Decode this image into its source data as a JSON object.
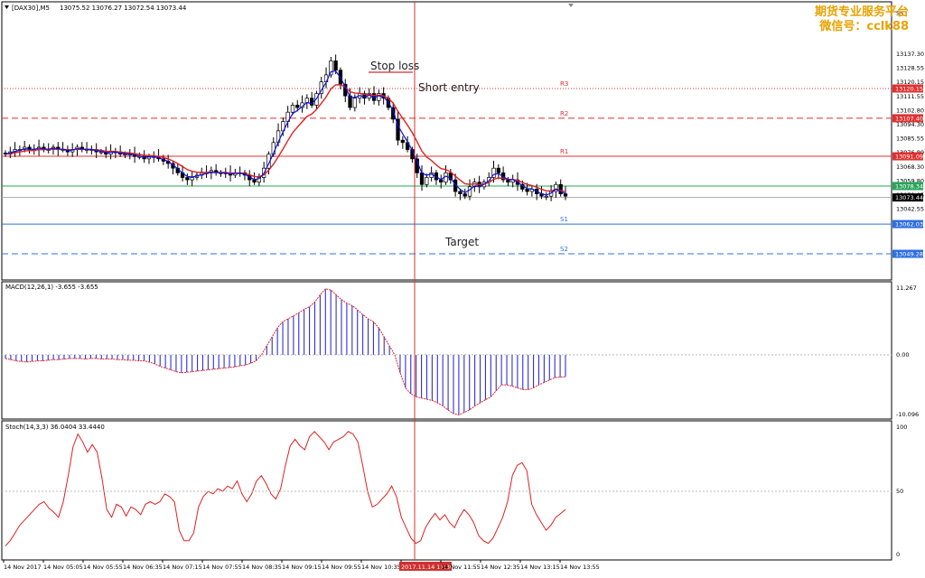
{
  "header": {
    "symbol": "[DAX30],M5",
    "ohlc": "13075.52 13076.27 13072.54 13073.44"
  },
  "watermark": {
    "line1": "期货专业服务平台",
    "line2": "微信号：cclk88"
  },
  "annotations": {
    "stop_loss": "Stop loss",
    "short_entry": "Short entry",
    "target": "Target"
  },
  "chart_data": [
    {
      "type": "candlestick",
      "title": "[DAX30],M5",
      "ylim": [
        13040,
        13155
      ],
      "y_ticks": [
        "13137.30",
        "13128.55",
        "13120.15",
        "13111.55",
        "13102.80",
        "13094.30",
        "13085.55",
        "13076.80",
        "13068.30",
        "13059.80",
        "13051.05",
        "13042.55"
      ],
      "top_tick": "55",
      "levels": [
        {
          "name": "R3",
          "value": 13120.15,
          "style": "dotted",
          "color": "#e03030"
        },
        {
          "name": "R2",
          "value": 13107.4,
          "style": "dashed",
          "color": "#e03030"
        },
        {
          "name": "R1",
          "value": 13091.09,
          "style": "solid",
          "color": "#e03030"
        },
        {
          "name": "",
          "value": 13078.34,
          "style": "solid",
          "color": "#2aa35a"
        },
        {
          "name": "S1",
          "value": 13062.03,
          "style": "solid",
          "color": "#2f6fe0"
        },
        {
          "name": "S2",
          "value": 13049.28,
          "style": "dashed",
          "color": "#2f6fe0"
        }
      ],
      "price_labels": [
        {
          "text": "13120.15",
          "color": "#e03030"
        },
        {
          "text": "13107.40",
          "color": "#e03030"
        },
        {
          "text": "13091.09",
          "color": "#e03030"
        },
        {
          "text": "13078.34",
          "color": "#2aa35a"
        },
        {
          "text": "13073.44",
          "color": "#000000"
        },
        {
          "text": "13062.03",
          "color": "#2f6fe0"
        },
        {
          "text": "13049.28",
          "color": "#2f6fe0"
        }
      ],
      "current_price": 13073.44,
      "closes": [
        13092,
        13093,
        13094,
        13094,
        13095,
        13094,
        13094,
        13095,
        13094,
        13094,
        13095,
        13094,
        13094,
        13093,
        13094,
        13095,
        13094,
        13094,
        13094,
        13093,
        13093,
        13092,
        13093,
        13093,
        13092,
        13092,
        13092,
        13091,
        13091,
        13090,
        13091,
        13091,
        13090,
        13089,
        13088,
        13086,
        13084,
        13082,
        13081,
        13082,
        13083,
        13084,
        13084,
        13085,
        13084,
        13084,
        13084,
        13083,
        13084,
        13084,
        13083,
        13081,
        13080,
        13082,
        13086,
        13092,
        13097,
        13102,
        13106,
        13110,
        13113,
        13112,
        13114,
        13116,
        13113,
        13118,
        13123,
        13126,
        13132,
        13128,
        13122,
        13117,
        13112,
        13116,
        13118,
        13116,
        13118,
        13115,
        13118,
        13116,
        13112,
        13107,
        13098,
        13097,
        13094,
        13090,
        13084,
        13079,
        13082,
        13084,
        13081,
        13080,
        13084,
        13081,
        13076,
        13075,
        13074,
        13078,
        13080,
        13078,
        13080,
        13082,
        13086,
        13084,
        13081,
        13080,
        13081,
        13079,
        13077,
        13076,
        13077,
        13075,
        13074,
        13074,
        13076,
        13079,
        13075,
        13074
      ],
      "ma_fast_color": "#1010e0",
      "ma_slow_color": "#e02020"
    },
    {
      "type": "bar",
      "title": "MACD(12,26,1) -3.655 -3.655",
      "ylim": [
        -10.096,
        11.267
      ],
      "y_ticks": [
        "11.267",
        "0.00",
        "-10.096"
      ],
      "values": [
        -0.6,
        -0.8,
        -1.0,
        -1.1,
        -1.2,
        -1.1,
        -1.0,
        -1.0,
        -0.9,
        -0.8,
        -0.8,
        -0.7,
        -0.6,
        -0.6,
        -0.6,
        -0.7,
        -0.6,
        -0.6,
        -0.7,
        -0.7,
        -0.7,
        -0.8,
        -0.8,
        -0.9,
        -0.9,
        -1.0,
        -1.0,
        -1.2,
        -1.5,
        -1.9,
        -2.2,
        -2.5,
        -2.8,
        -3.0,
        -2.9,
        -2.8,
        -2.7,
        -2.6,
        -2.5,
        -2.4,
        -2.3,
        -2.2,
        -2.1,
        -2.0,
        -1.8,
        -1.7,
        -1.4,
        -1.0,
        0.0,
        1.5,
        3.0,
        4.5,
        5.5,
        6.0,
        6.5,
        7.0,
        7.6,
        8.0,
        8.8,
        10.0,
        11.0,
        10.8,
        10.0,
        9.2,
        8.6,
        8.2,
        7.5,
        6.7,
        6.0,
        5.5,
        4.5,
        3.0,
        1.5,
        0.0,
        -3.0,
        -5.5,
        -6.5,
        -7.0,
        -7.2,
        -7.4,
        -7.6,
        -8.0,
        -8.5,
        -9.2,
        -9.8,
        -10.0,
        -9.6,
        -9.2,
        -8.5,
        -8.0,
        -7.5,
        -7.0,
        -6.0,
        -5.0,
        -5.0,
        -5.2,
        -5.5,
        -5.8,
        -5.8,
        -5.5,
        -5.0,
        -4.6,
        -4.2,
        -3.8,
        -3.7,
        -3.655
      ],
      "signal_color": "#e02020",
      "bar_color": "#3030d0"
    },
    {
      "type": "line",
      "title": "Stoch(14,3,3) 36.0404 33.4440",
      "ylim": [
        0,
        100
      ],
      "y_ticks": [
        "100",
        "50",
        "0"
      ],
      "values": [
        8,
        12,
        18,
        24,
        28,
        32,
        36,
        40,
        42,
        37,
        34,
        30,
        42,
        62,
        84,
        94,
        88,
        80,
        86,
        80,
        60,
        36,
        30,
        40,
        38,
        31,
        38,
        36,
        32,
        40,
        42,
        40,
        42,
        48,
        46,
        42,
        20,
        12,
        12,
        18,
        38,
        46,
        50,
        48,
        52,
        50,
        54,
        52,
        58,
        48,
        42,
        48,
        58,
        62,
        56,
        48,
        44,
        52,
        70,
        85,
        90,
        85,
        82,
        92,
        96,
        92,
        88,
        82,
        88,
        90,
        92,
        96,
        94,
        88,
        70,
        50,
        38,
        40,
        44,
        48,
        54,
        46,
        30,
        22,
        14,
        10,
        12,
        22,
        28,
        33,
        28,
        32,
        26,
        22,
        30,
        36,
        32,
        26,
        16,
        12,
        10,
        14,
        22,
        30,
        42,
        62,
        70,
        72,
        66,
        40,
        32,
        26,
        20,
        24,
        30,
        33,
        36
      ],
      "color": "#e02020"
    }
  ],
  "time_axis": {
    "labels": [
      "14 Nov 2017",
      "14 Nov 05:05",
      "14 Nov 05:55",
      "14 Nov 06:35",
      "14 Nov 07:15",
      "14 Nov 07:55",
      "14 Nov 08:35",
      "14 Nov 09:15",
      "14 Nov 09:55",
      "14 Nov 10:35",
      "2017.11.14 11:30",
      "14 Nov 11:55",
      "14 Nov 12:35",
      "14 Nov 13:15",
      "14 Nov 13:55"
    ],
    "highlight": "2017.11.14 11:30"
  }
}
